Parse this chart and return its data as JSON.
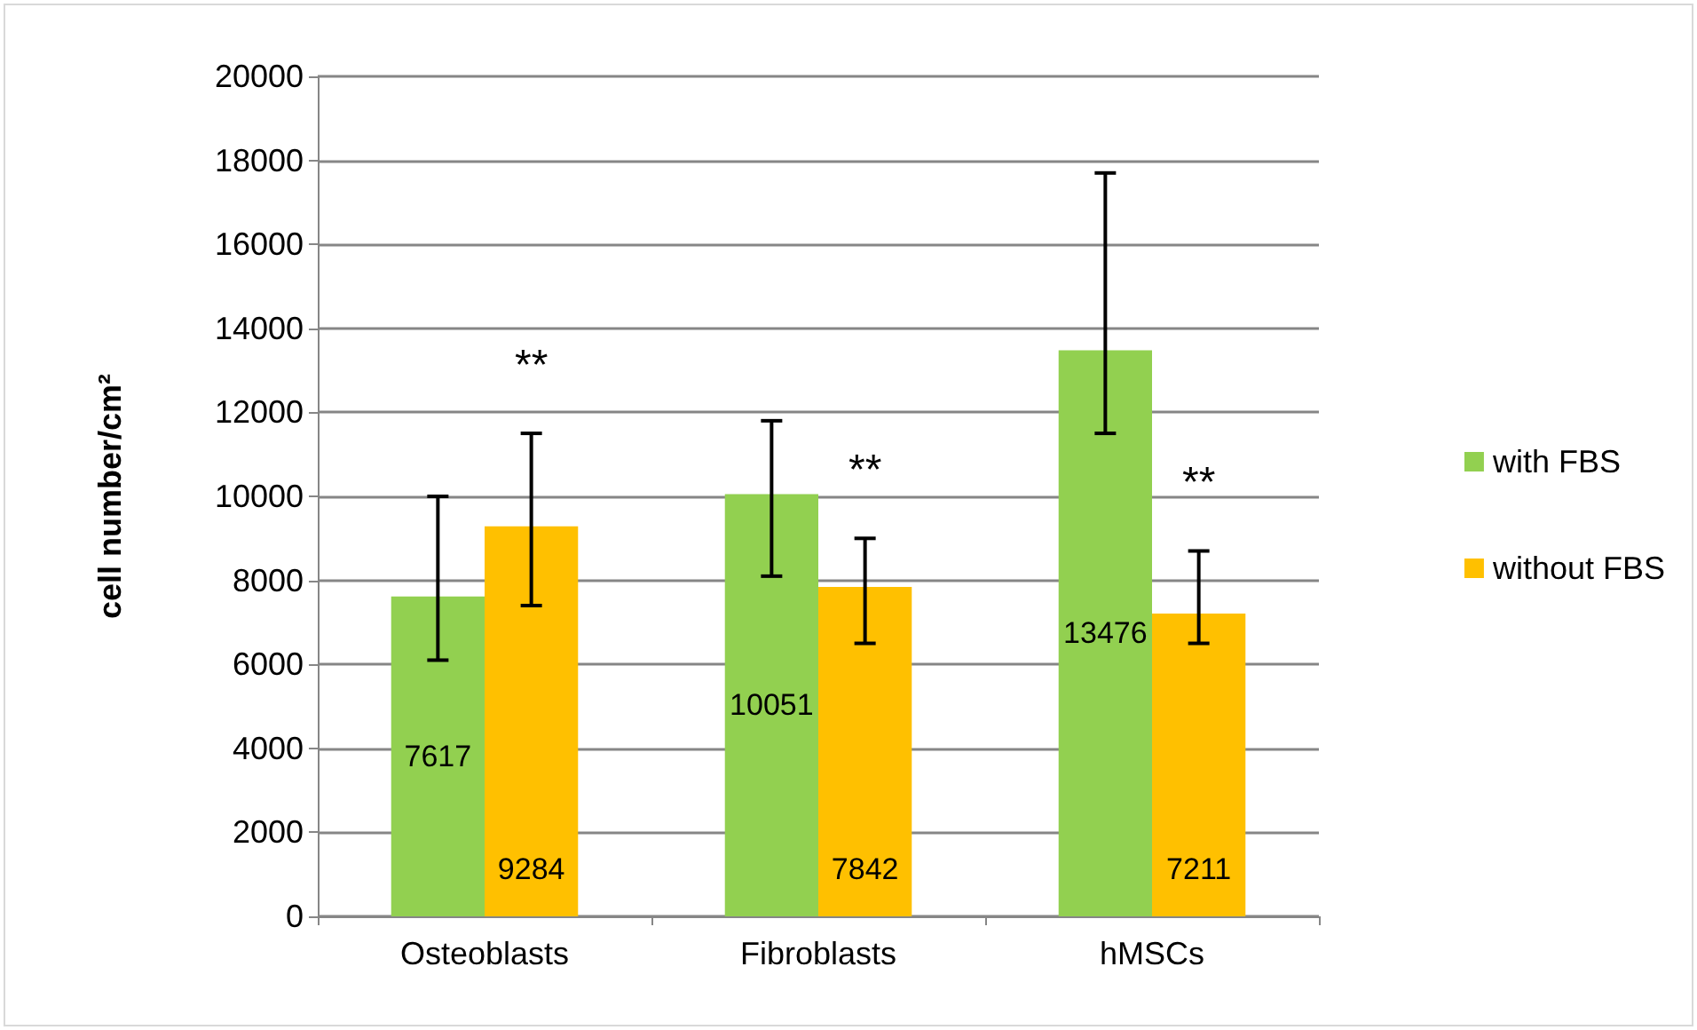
{
  "chart_data": {
    "type": "bar",
    "ylabel": "cell number/cm²",
    "categories": [
      "Osteoblasts",
      "Fibroblasts",
      "hMSCs"
    ],
    "series": [
      {
        "name": "with FBS",
        "color": "#92d050",
        "values": [
          7617,
          10051,
          13476
        ],
        "errors": [
          [
            6100,
            10000
          ],
          [
            8100,
            11800
          ],
          [
            11500,
            17700
          ]
        ]
      },
      {
        "name": "without FBS",
        "color": "#ffc000",
        "values": [
          9284,
          7842,
          7211
        ],
        "errors": [
          [
            7400,
            11500
          ],
          [
            6500,
            9000
          ],
          [
            6500,
            8700
          ]
        ]
      }
    ],
    "annotations": [
      "**",
      "**",
      "**"
    ],
    "data_labels": true,
    "ylim": [
      0,
      20000
    ],
    "yticks": [
      0,
      2000,
      4000,
      6000,
      8000,
      10000,
      12000,
      14000,
      16000,
      18000,
      20000
    ],
    "grid": "y",
    "legend": "right"
  }
}
